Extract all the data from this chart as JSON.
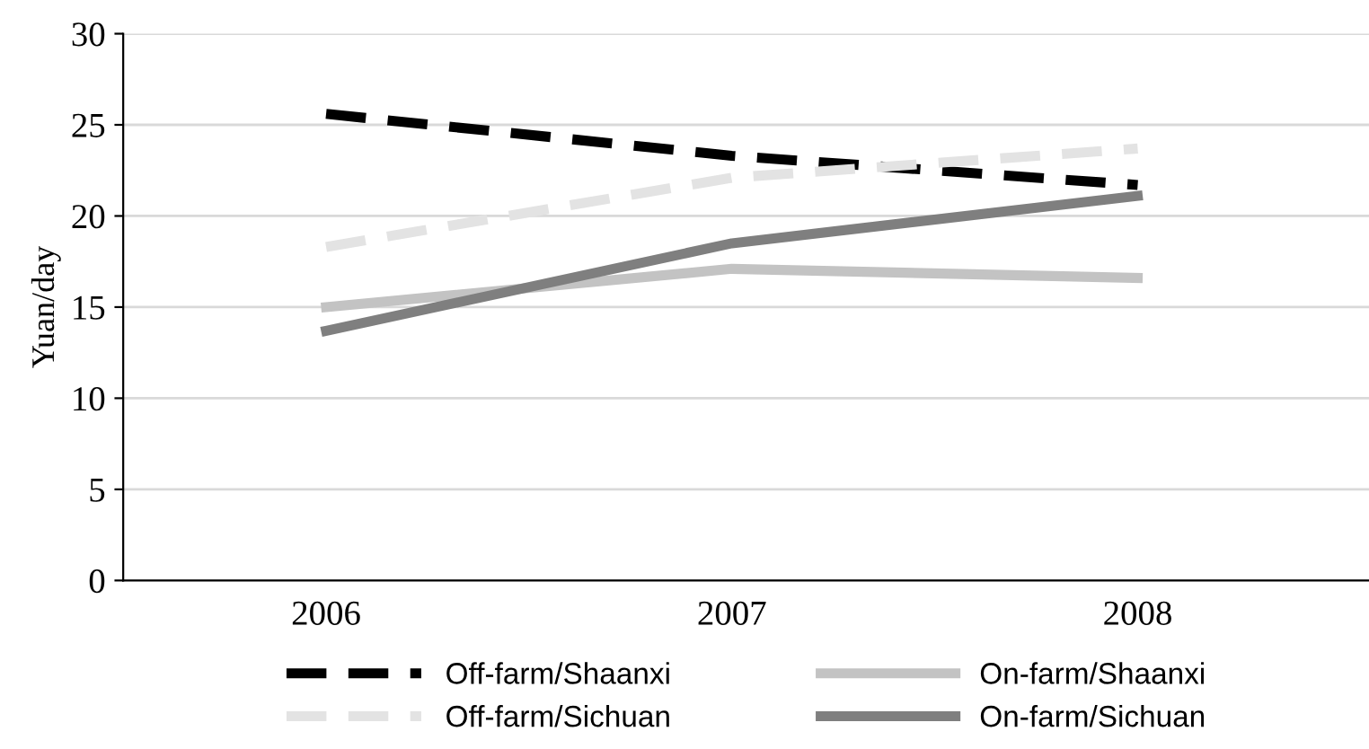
{
  "chart_data": {
    "type": "line",
    "ylabel": "Yuan/day",
    "categories": [
      "2006",
      "2007",
      "2008"
    ],
    "series": [
      {
        "name": "Off-farm/Shaanxi",
        "color": "#000000",
        "line_style": "dashed",
        "values": [
          25.6,
          23.3,
          21.7
        ]
      },
      {
        "name": "Off-farm/Sichuan",
        "color": "#e3e3e3",
        "line_style": "dashed",
        "values": [
          18.3,
          22.1,
          23.7
        ]
      },
      {
        "name": "On-farm/Shaanxi",
        "color": "#c3c3c3",
        "line_style": "solid",
        "values": [
          15.0,
          17.1,
          16.6
        ]
      },
      {
        "name": "On-farm/Sichuan",
        "color": "#7f7f7f",
        "line_style": "solid",
        "values": [
          13.7,
          18.5,
          21.1
        ]
      }
    ],
    "ylim": [
      0,
      30
    ],
    "yticks": [
      0,
      5,
      10,
      15,
      20,
      25,
      30
    ],
    "grid": "y",
    "legend": "bottom",
    "marker": "none"
  }
}
